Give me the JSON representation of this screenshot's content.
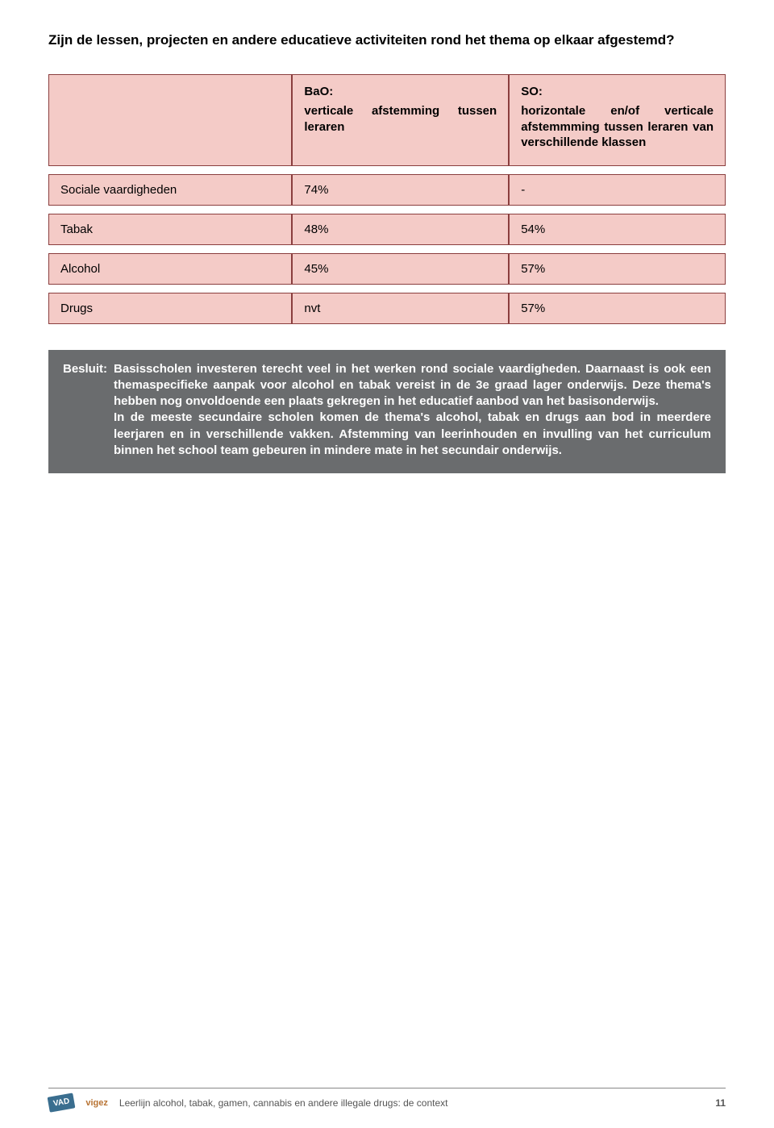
{
  "title": "Zijn de lessen, projecten en andere educatieve activiteiten rond het thema op elkaar afgestemd?",
  "table": {
    "header": {
      "col1": "",
      "bao_label": "BaO:",
      "bao_sub": "verticale afstemming tussen leraren",
      "so_label": "SO:",
      "so_sub": "horizontale en/of verticale afstemmming tussen leraren van verschillende klassen"
    },
    "rows": [
      {
        "label": "Sociale vaardigheden",
        "bao": "74%",
        "so": "-"
      },
      {
        "label": "Tabak",
        "bao": "48%",
        "so": "54%"
      },
      {
        "label": "Alcohol",
        "bao": "45%",
        "so": "57%"
      },
      {
        "label": "Drugs",
        "bao": "nvt",
        "so": "57%"
      }
    ]
  },
  "besluit": {
    "label": "Besluit:",
    "text": "Basisscholen investeren terecht veel in het werken rond sociale vaardigheden. Daarnaast is ook een themaspecifieke aanpak voor alcohol en tabak vereist in de 3e graad lager onderwijs. Deze thema's hebben nog onvoldoende een plaats gekregen in het educatief aanbod van het basisonderwijs.\nIn de meeste secundaire scholen komen de thema's alcohol, tabak en drugs aan bod in meerdere leerjaren en in verschillende vakken. Afstemming van leerinhouden en invulling van het curriculum binnen het school team gebeuren in mindere mate in het secundair onderwijs."
  },
  "footer": {
    "vad": "VAD",
    "vigez": "vigez",
    "text": "Leerlijn alcohol, tabak, gamen, cannabis en andere illegale drugs: de context",
    "page": "11"
  },
  "colors": {
    "cell_bg": "#f4cbc7",
    "cell_border": "#8a3e3e",
    "besluit_bg": "#6a6c6e"
  }
}
